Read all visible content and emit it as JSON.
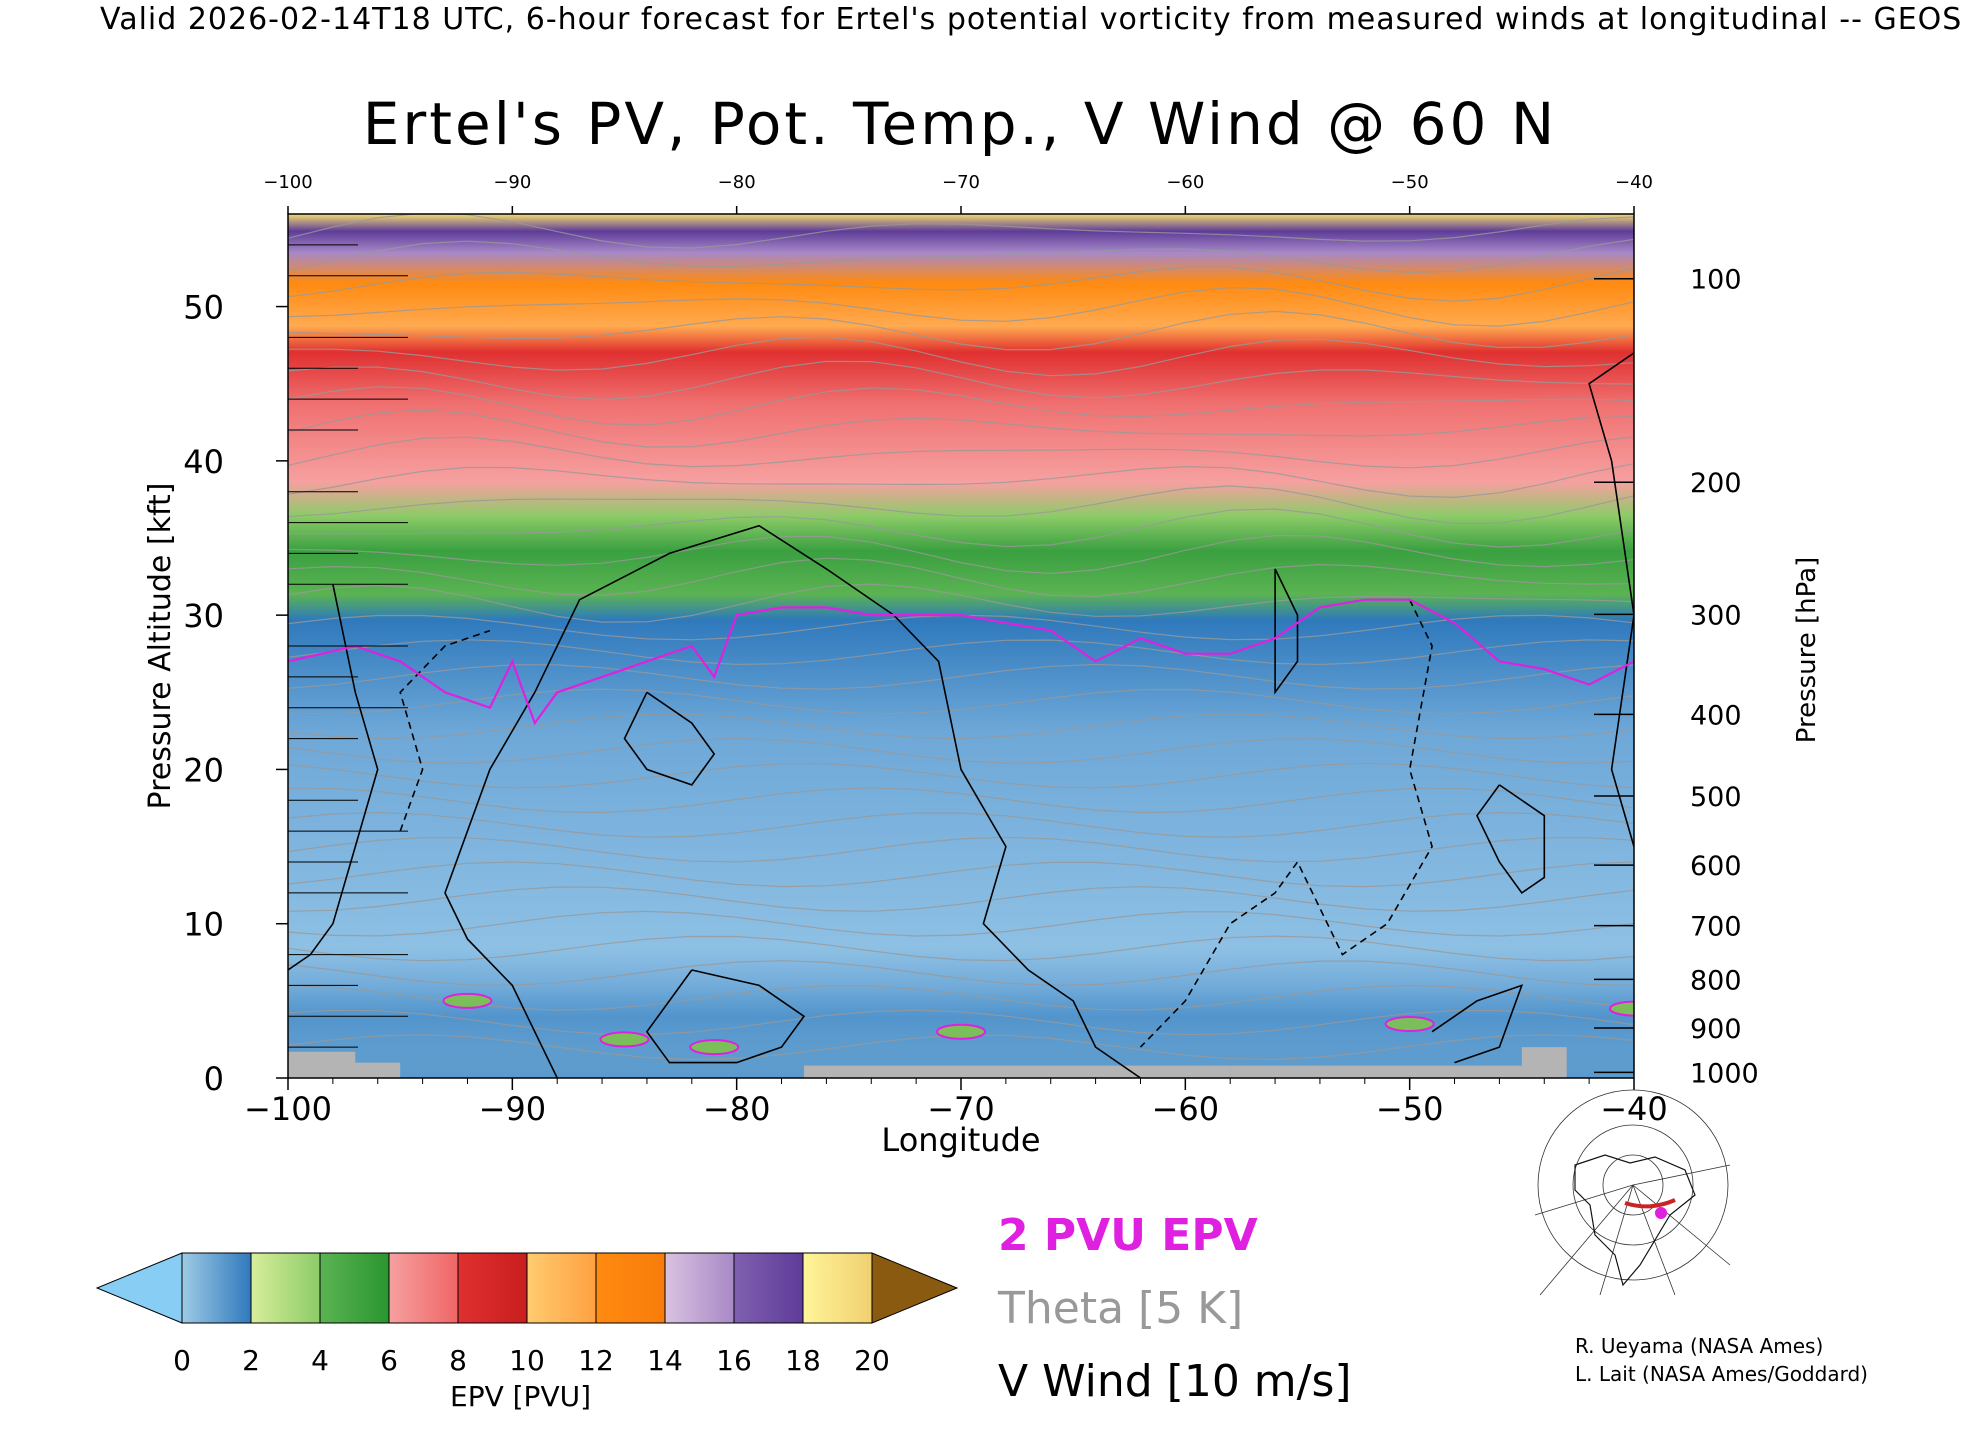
{
  "header": "Valid 2026-02-14T18 UTC, 6-hour forecast for Ertel's potential vorticity from measured winds at longitudinal -- GEOS",
  "colors": {
    "pvu2": "#e020e0",
    "theta": "#999999",
    "vwind": "#000000",
    "terrain": "#b4b4b4"
  },
  "chart_data": {
    "type": "heatmap",
    "title": "Ertel's PV, Pot. Temp., V Wind @ 60 N",
    "xlabel": "Longitude",
    "ylabel": "Pressure Altitude [kft]",
    "y2label": "Pressure [hPa]",
    "xlim": [
      -100,
      -40
    ],
    "ylim": [
      0,
      56
    ],
    "x_ticks": [
      -100,
      -90,
      -80,
      -70,
      -60,
      -50,
      -40
    ],
    "x_tick_labels": [
      "−100",
      "−90",
      "−80",
      "−70",
      "−60",
      "−50",
      "−40"
    ],
    "top_tick_labels": [
      "−100",
      "−90",
      "−80",
      "−70",
      "−60",
      "−50",
      "−40"
    ],
    "y_ticks": [
      0,
      10,
      20,
      30,
      40,
      50
    ],
    "y_tick_labels": [
      "0",
      "10",
      "20",
      "30",
      "40",
      "50"
    ],
    "pressure_ticks": [
      {
        "hpa": 100,
        "label": "100"
      },
      {
        "hpa": 200,
        "label": "200"
      },
      {
        "hpa": 300,
        "label": "300"
      },
      {
        "hpa": 400,
        "label": "400"
      },
      {
        "hpa": 500,
        "label": "500"
      },
      {
        "hpa": 600,
        "label": "600"
      },
      {
        "hpa": 700,
        "label": "700"
      },
      {
        "hpa": 800,
        "label": "800"
      },
      {
        "hpa": 900,
        "label": "900"
      },
      {
        "hpa": 1000,
        "label": "1000"
      }
    ],
    "pv_2pvu_altitude": {
      "lon": [
        -100,
        -97,
        -95,
        -93,
        -91,
        -90,
        -89,
        -88,
        -86,
        -84,
        -82,
        -81,
        -80,
        -78,
        -76,
        -74,
        -72,
        -70,
        -68,
        -66,
        -64,
        -62,
        -60,
        -58,
        -56,
        -54,
        -52,
        -50,
        -48,
        -46,
        -44,
        -42,
        -40
      ],
      "kft": [
        27,
        28,
        27,
        25,
        24,
        27,
        23,
        25,
        26,
        27,
        28,
        26,
        30,
        30.5,
        30.5,
        30,
        30,
        30,
        29.5,
        29,
        27,
        28.5,
        27.5,
        27.5,
        28.5,
        30.5,
        31,
        31,
        29.5,
        27,
        26.5,
        25.5,
        27
      ]
    },
    "colorbar": {
      "label": "EPV [PVU]",
      "ticks": [
        "0",
        "2",
        "4",
        "6",
        "8",
        "10",
        "12",
        "14",
        "16",
        "18",
        "20"
      ],
      "under_color": "#87cdf4",
      "over_color": "#8a5a10",
      "bands": [
        [
          "#9ecbe6",
          "#2f79bc"
        ],
        [
          "#d8ee9a",
          "#8ccb68"
        ],
        [
          "#5bb352",
          "#2a9630"
        ],
        [
          "#f6a0a0",
          "#f06666"
        ],
        [
          "#e03030",
          "#c81e1e"
        ],
        [
          "#ffcc70",
          "#ffa040"
        ],
        [
          "#ff8a10",
          "#f87d0b"
        ],
        [
          "#d9c2e0",
          "#a889c7"
        ],
        [
          "#8060b0",
          "#5e3c99"
        ],
        [
          "#fff59a",
          "#f0d070"
        ]
      ]
    }
  },
  "legend": {
    "pvu2": "2 PVU EPV",
    "theta": "Theta [5 K]",
    "vwind": "V Wind [10 m/s]"
  },
  "credits": {
    "line1": "R. Ueyama (NASA Ames)",
    "line2": "L. Lait (NASA Ames/Goddard)"
  },
  "inset_map": {
    "icon": "polar-stereographic-locator-map-icon",
    "section_color": "#cc2222",
    "marker_color": "#e020e0"
  }
}
